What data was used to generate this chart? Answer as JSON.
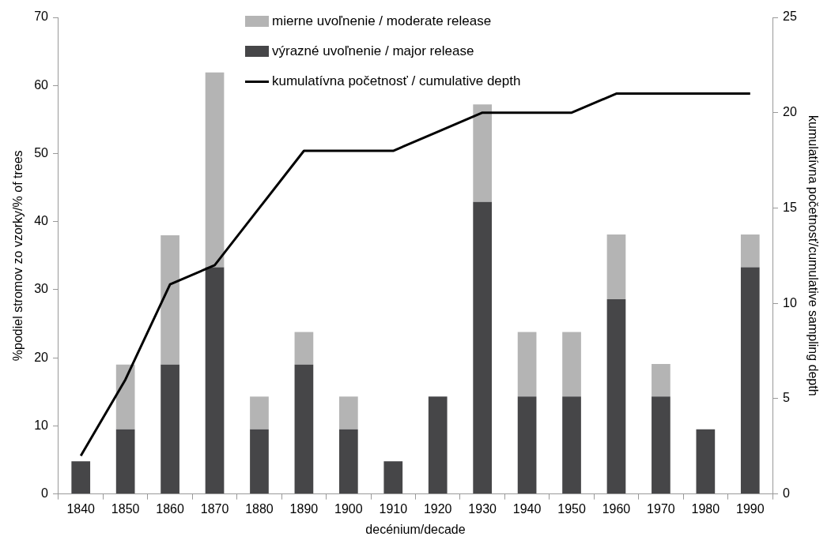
{
  "chart_data": {
    "type": "bar",
    "stacked": true,
    "xlabel": "decénium/decade",
    "ylabel": "%podiel stromov zo vzorky/% of trees",
    "y2label": "kumulatívna početnosť/cumulative sampling depth",
    "categories": [
      "1840",
      "1850",
      "1860",
      "1870",
      "1880",
      "1890",
      "1900",
      "1910",
      "1920",
      "1930",
      "1940",
      "1950",
      "1960",
      "1970",
      "1980",
      "1990"
    ],
    "series": [
      {
        "name": "výrazné uvoľnenie / major release",
        "color": "#464648",
        "values": [
          4.8,
          9.5,
          19,
          33.3,
          9.5,
          19,
          9.5,
          4.8,
          14.3,
          42.9,
          14.3,
          14.3,
          28.6,
          14.3,
          9.5,
          33.3
        ]
      },
      {
        "name": "mierne uvoľnenie / moderate release",
        "color": "#b4b4b4",
        "values": [
          0,
          9.5,
          19,
          28.6,
          4.8,
          4.8,
          4.8,
          0,
          0,
          14.3,
          9.5,
          9.5,
          9.5,
          4.8,
          0,
          4.8
        ]
      },
      {
        "name": "kumulatívna početnosť / cumulative depth",
        "type": "line",
        "axis": "y2",
        "color": "#000000",
        "values": [
          2,
          6,
          11,
          12,
          15,
          18,
          18,
          18,
          19,
          20,
          20,
          20,
          21,
          21,
          21,
          21
        ]
      }
    ],
    "ylim": [
      0,
      70
    ],
    "yticks": [
      0,
      10,
      20,
      30,
      40,
      50,
      60,
      70
    ],
    "y2lim": [
      0,
      25
    ],
    "y2ticks": [
      0,
      5,
      10,
      15,
      20,
      25
    ],
    "grid": false,
    "legend": "top",
    "marker": "none"
  }
}
